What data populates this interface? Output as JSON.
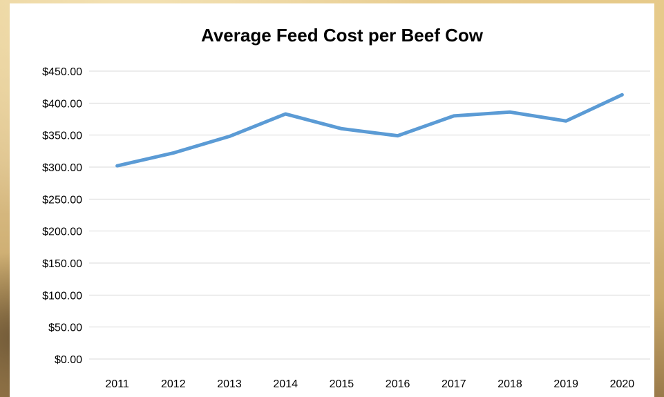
{
  "chart_data": {
    "type": "line",
    "title": "Average Feed Cost per Beef Cow",
    "xlabel": "",
    "ylabel": "",
    "categories": [
      "2011",
      "2012",
      "2013",
      "2014",
      "2015",
      "2016",
      "2017",
      "2018",
      "2019",
      "2020"
    ],
    "series": [
      {
        "values": [
          302,
          322,
          348,
          383,
          360,
          349,
          380,
          386,
          372,
          413
        ],
        "color": "#5b9bd5"
      }
    ],
    "ylim": [
      0,
      450
    ],
    "ytick_step": 50,
    "ytick_labels": [
      "$0.00",
      "$50.00",
      "$100.00",
      "$150.00",
      "$200.00",
      "$250.00",
      "$300.00",
      "$350.00",
      "$400.00",
      "$450.00"
    ],
    "grid": true,
    "legend": "none"
  }
}
